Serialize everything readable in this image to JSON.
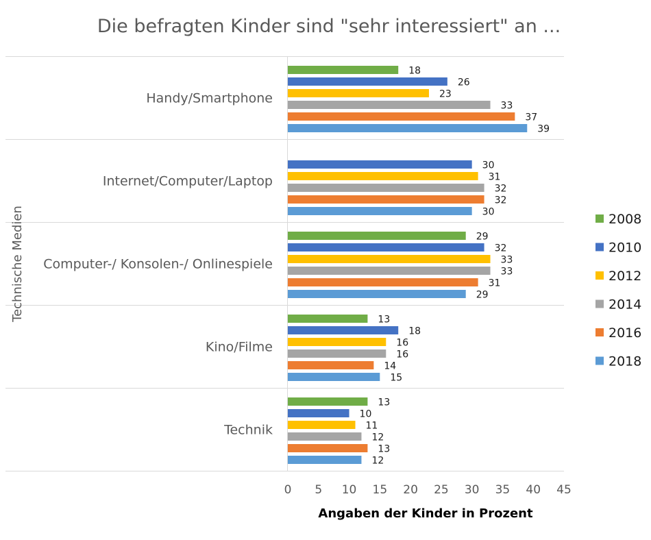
{
  "chart_data": {
    "type": "bar",
    "orientation": "horizontal",
    "title": "Die befragten Kinder sind \"sehr interessiert\" an ...",
    "xlabel": "Angaben der Kinder in Prozent",
    "ylabel": "Technische Medien",
    "xlim": [
      0,
      45
    ],
    "x_ticks": [
      "0",
      "5",
      "10",
      "15",
      "20",
      "25",
      "30",
      "35",
      "40",
      "45"
    ],
    "grid": false,
    "legend_position": "right",
    "categories": [
      "Handy/Smartphone",
      "Internet/Computer/Laptop",
      "Computer-/ Konsolen-/ Onlinespiele",
      "Kino/Filme",
      "Technik"
    ],
    "series": [
      {
        "name": "2008",
        "color": "#70AD47",
        "values": [
          18,
          null,
          29,
          13,
          13
        ]
      },
      {
        "name": "2010",
        "color": "#4472C4",
        "values": [
          26,
          30,
          32,
          18,
          10
        ]
      },
      {
        "name": "2012",
        "color": "#FFC000",
        "values": [
          23,
          31,
          33,
          16,
          11
        ]
      },
      {
        "name": "2014",
        "color": "#A5A5A5",
        "values": [
          33,
          32,
          33,
          16,
          12
        ]
      },
      {
        "name": "2016",
        "color": "#ED7D31",
        "values": [
          37,
          32,
          31,
          14,
          13
        ]
      },
      {
        "name": "2018",
        "color": "#5B9BD5",
        "values": [
          39,
          30,
          29,
          15,
          12
        ]
      }
    ]
  }
}
